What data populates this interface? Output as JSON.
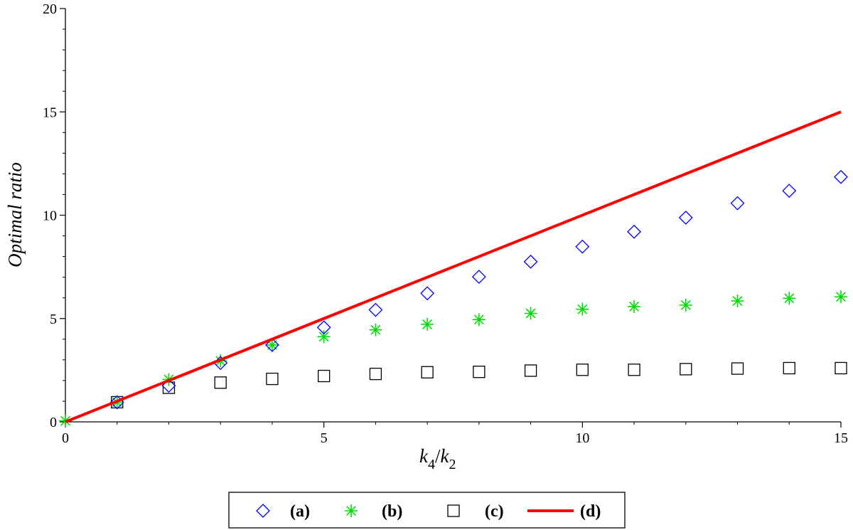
{
  "chart_data": {
    "type": "scatter",
    "xlabel": {
      "base": "k",
      "sub1": "4",
      "slash": "/",
      "base2": "k",
      "sub2": "2"
    },
    "ylabel": "Optimal ratio",
    "xlim": [
      0,
      15
    ],
    "ylim": [
      0,
      20
    ],
    "x_ticks": [
      0,
      5,
      10,
      15
    ],
    "y_ticks": [
      0,
      5,
      10,
      15,
      20
    ],
    "x_tick_labels": [
      "0",
      "5",
      "10",
      "15"
    ],
    "y_tick_labels": [
      "0",
      "5",
      "10",
      "15",
      "20"
    ],
    "legend_position": "bottom-center",
    "series": [
      {
        "name": "(a)",
        "marker": "diamond",
        "color": "#0000ff",
        "x": [
          1,
          2,
          3,
          4,
          5,
          6,
          7,
          8,
          9,
          10,
          11,
          12,
          13,
          14,
          15
        ],
        "y": [
          0.95,
          1.75,
          2.85,
          3.72,
          4.57,
          5.42,
          6.22,
          7.02,
          7.75,
          8.48,
          9.2,
          9.88,
          10.58,
          11.18,
          11.85
        ]
      },
      {
        "name": "(b)",
        "marker": "star",
        "color": "#00dd00",
        "x": [
          0,
          1,
          2,
          3,
          4,
          5,
          6,
          7,
          8,
          9,
          10,
          11,
          12,
          13,
          14,
          15
        ],
        "y": [
          0.05,
          0.95,
          2.05,
          2.95,
          3.72,
          4.12,
          4.45,
          4.72,
          4.95,
          5.25,
          5.45,
          5.58,
          5.65,
          5.85,
          5.98,
          6.05
        ]
      },
      {
        "name": "(c)",
        "marker": "square",
        "color": "#000000",
        "x": [
          1,
          2,
          3,
          4,
          5,
          6,
          7,
          8,
          9,
          10,
          11,
          12,
          13,
          14,
          15
        ],
        "y": [
          0.95,
          1.65,
          1.9,
          2.08,
          2.22,
          2.32,
          2.4,
          2.42,
          2.48,
          2.52,
          2.52,
          2.55,
          2.58,
          2.6,
          2.6
        ]
      },
      {
        "name": "(d)",
        "marker": "line",
        "color": "#ff0000",
        "x": [
          0,
          15
        ],
        "y": [
          0,
          15
        ]
      }
    ]
  }
}
